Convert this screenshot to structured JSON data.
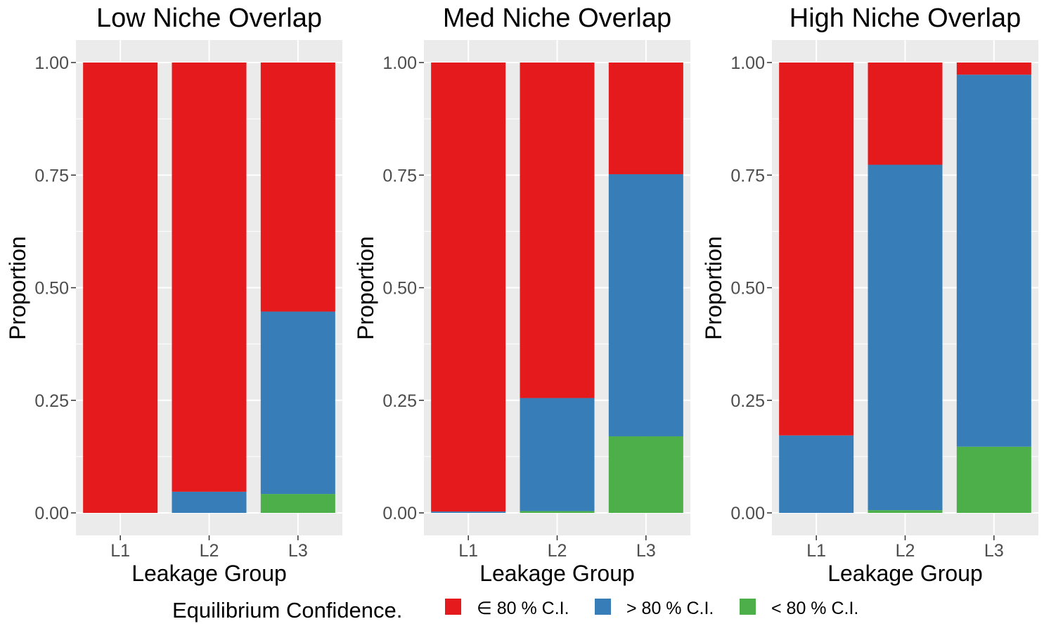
{
  "chart_data": {
    "type": "bar",
    "stacked": true,
    "panels": [
      {
        "title": "Low Niche Overlap",
        "xlabel": "Leakage Group",
        "ylabel": "Proportion",
        "categories": [
          "L1",
          "L2",
          "L3"
        ],
        "ylim": [
          0,
          1
        ],
        "yticks": [
          "0.00",
          "0.25",
          "0.50",
          "0.75",
          "1.00"
        ],
        "series": [
          {
            "name": "< 80 % C.I.",
            "values": [
              0.0,
              0.0,
              0.042
            ]
          },
          {
            "name": "> 80 % C.I.",
            "values": [
              0.0,
              0.047,
              0.405
            ]
          },
          {
            "name": "∈ 80 % C.I.",
            "values": [
              1.0,
              0.953,
              0.553
            ]
          }
        ]
      },
      {
        "title": "Med Niche Overlap",
        "xlabel": "Leakage Group",
        "ylabel": "Proportion",
        "categories": [
          "L1",
          "L2",
          "L3"
        ],
        "ylim": [
          0,
          1
        ],
        "yticks": [
          "0.00",
          "0.25",
          "0.50",
          "0.75",
          "1.00"
        ],
        "series": [
          {
            "name": "< 80 % C.I.",
            "values": [
              0.0,
              0.004,
              0.17
            ]
          },
          {
            "name": "> 80 % C.I.",
            "values": [
              0.003,
              0.251,
              0.582
            ]
          },
          {
            "name": "∈ 80 % C.I.",
            "values": [
              0.997,
              0.745,
              0.248
            ]
          }
        ]
      },
      {
        "title": "High Niche Overlap",
        "xlabel": "Leakage Group",
        "ylabel": "Proportion",
        "categories": [
          "L1",
          "L2",
          "L3"
        ],
        "ylim": [
          0,
          1
        ],
        "yticks": [
          "0.00",
          "0.25",
          "0.50",
          "0.75",
          "1.00"
        ],
        "series": [
          {
            "name": "< 80 % C.I.",
            "values": [
              0.0,
              0.006,
              0.147
            ]
          },
          {
            "name": "> 80 % C.I.",
            "values": [
              0.172,
              0.767,
              0.826
            ]
          },
          {
            "name": "∈ 80 % C.I.",
            "values": [
              0.828,
              0.227,
              0.027
            ]
          }
        ]
      }
    ],
    "grid": true,
    "legend": {
      "title": "Equilibrium Confidence.",
      "position": "bottom",
      "items": [
        {
          "label": "∈ 80 % C.I.",
          "color": "#E41A1C"
        },
        {
          "label": "> 80 % C.I.",
          "color": "#377EB8"
        },
        {
          "label": "< 80 % C.I.",
          "color": "#4DAF4A"
        }
      ]
    },
    "colors": {
      "in_ci": "#E41A1C",
      "above_ci": "#377EB8",
      "below_ci": "#4DAF4A",
      "panel_bg": "#EBEBEB",
      "grid": "#FFFFFF"
    }
  }
}
